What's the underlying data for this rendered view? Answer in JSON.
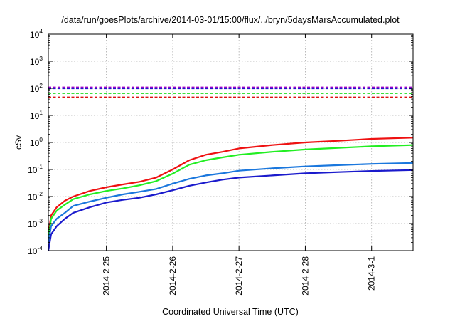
{
  "chart_data": {
    "type": "line",
    "title": "/data/run/goesPlots/archive/2014-03-01/15:00/flux/../bryn/5daysMarsAccumulated.plot",
    "xlabel": "Coordinated Universal Time (UTC)",
    "ylabel": "cSv",
    "yscale": "log",
    "ylim": [
      0.0001,
      10000
    ],
    "xlim": [
      "2014-02-24T03:00",
      "2014-03-01T15:00"
    ],
    "grid": true,
    "x_ticks": [
      "2014-2-25",
      "2014-2-26",
      "2014-2-27",
      "2014-2-28",
      "2014-3-1"
    ],
    "y_ticks": [
      {
        "base": "10",
        "exp": "-4",
        "value": 0.0001
      },
      {
        "base": "10",
        "exp": "-3",
        "value": 0.001
      },
      {
        "base": "10",
        "exp": "-2",
        "value": 0.01
      },
      {
        "base": "10",
        "exp": "-1",
        "value": 0.1
      },
      {
        "base": "10",
        "exp": "0",
        "value": 1
      },
      {
        "base": "10",
        "exp": "1",
        "value": 10
      },
      {
        "base": "10",
        "exp": "2",
        "value": 100
      },
      {
        "base": "10",
        "exp": "3",
        "value": 1000
      },
      {
        "base": "10",
        "exp": "4",
        "value": 10000
      }
    ],
    "thresholds": [
      {
        "color": "#9a00c8",
        "value": 110
      },
      {
        "color": "#1a1acc",
        "value": 98
      },
      {
        "color": "#22dd22",
        "value": 65
      },
      {
        "color": "#dd1111",
        "value": 47
      }
    ],
    "series": [
      {
        "color": "#ee1111",
        "points": [
          [
            "2014-02-24T03:00",
            0.0004
          ],
          [
            "2014-02-24T04:00",
            0.002
          ],
          [
            "2014-02-24T06:00",
            0.004
          ],
          [
            "2014-02-24T09:00",
            0.007
          ],
          [
            "2014-02-24T12:00",
            0.01
          ],
          [
            "2014-02-24T18:00",
            0.016
          ],
          [
            "2014-02-25T00:00",
            0.022
          ],
          [
            "2014-02-25T06:00",
            0.028
          ],
          [
            "2014-02-25T12:00",
            0.035
          ],
          [
            "2014-02-25T18:00",
            0.05
          ],
          [
            "2014-02-26T00:00",
            0.1
          ],
          [
            "2014-02-26T06:00",
            0.22
          ],
          [
            "2014-02-26T12:00",
            0.35
          ],
          [
            "2014-02-26T18:00",
            0.45
          ],
          [
            "2014-02-27T00:00",
            0.6
          ],
          [
            "2014-02-27T12:00",
            0.8
          ],
          [
            "2014-02-28T00:00",
            1.0
          ],
          [
            "2014-02-28T12:00",
            1.15
          ],
          [
            "2014-03-01T00:00",
            1.35
          ],
          [
            "2014-03-01T15:00",
            1.5
          ]
        ]
      },
      {
        "color": "#22ee22",
        "points": [
          [
            "2014-02-24T03:00",
            0.0003
          ],
          [
            "2014-02-24T04:00",
            0.0015
          ],
          [
            "2014-02-24T06:00",
            0.003
          ],
          [
            "2014-02-24T09:00",
            0.005
          ],
          [
            "2014-02-24T12:00",
            0.008
          ],
          [
            "2014-02-24T18:00",
            0.012
          ],
          [
            "2014-02-25T00:00",
            0.016
          ],
          [
            "2014-02-25T06:00",
            0.02
          ],
          [
            "2014-02-25T12:00",
            0.026
          ],
          [
            "2014-02-25T18:00",
            0.037
          ],
          [
            "2014-02-26T00:00",
            0.07
          ],
          [
            "2014-02-26T06:00",
            0.15
          ],
          [
            "2014-02-26T12:00",
            0.22
          ],
          [
            "2014-02-26T18:00",
            0.28
          ],
          [
            "2014-02-27T00:00",
            0.35
          ],
          [
            "2014-02-27T12:00",
            0.45
          ],
          [
            "2014-02-28T00:00",
            0.55
          ],
          [
            "2014-02-28T12:00",
            0.63
          ],
          [
            "2014-03-01T00:00",
            0.72
          ],
          [
            "2014-03-01T15:00",
            0.8
          ]
        ]
      },
      {
        "color": "#1a77dd",
        "points": [
          [
            "2014-02-24T03:00",
            0.0002
          ],
          [
            "2014-02-24T04:00",
            0.0008
          ],
          [
            "2014-02-24T06:00",
            0.0015
          ],
          [
            "2014-02-24T09:00",
            0.0025
          ],
          [
            "2014-02-24T12:00",
            0.0045
          ],
          [
            "2014-02-24T18:00",
            0.0065
          ],
          [
            "2014-02-25T00:00",
            0.009
          ],
          [
            "2014-02-25T06:00",
            0.012
          ],
          [
            "2014-02-25T12:00",
            0.015
          ],
          [
            "2014-02-25T18:00",
            0.019
          ],
          [
            "2014-02-26T00:00",
            0.03
          ],
          [
            "2014-02-26T06:00",
            0.045
          ],
          [
            "2014-02-26T12:00",
            0.06
          ],
          [
            "2014-02-26T18:00",
            0.072
          ],
          [
            "2014-02-27T00:00",
            0.09
          ],
          [
            "2014-02-27T12:00",
            0.11
          ],
          [
            "2014-02-28T00:00",
            0.13
          ],
          [
            "2014-02-28T12:00",
            0.145
          ],
          [
            "2014-03-01T00:00",
            0.16
          ],
          [
            "2014-03-01T15:00",
            0.175
          ]
        ]
      },
      {
        "color": "#1a1acc",
        "points": [
          [
            "2014-02-24T03:00",
            0.0001
          ],
          [
            "2014-02-24T04:00",
            0.0004
          ],
          [
            "2014-02-24T06:00",
            0.0008
          ],
          [
            "2014-02-24T09:00",
            0.0015
          ],
          [
            "2014-02-24T12:00",
            0.0025
          ],
          [
            "2014-02-24T18:00",
            0.004
          ],
          [
            "2014-02-25T00:00",
            0.006
          ],
          [
            "2014-02-25T06:00",
            0.0075
          ],
          [
            "2014-02-25T12:00",
            0.009
          ],
          [
            "2014-02-25T18:00",
            0.012
          ],
          [
            "2014-02-26T00:00",
            0.017
          ],
          [
            "2014-02-26T06:00",
            0.025
          ],
          [
            "2014-02-26T12:00",
            0.033
          ],
          [
            "2014-02-26T18:00",
            0.042
          ],
          [
            "2014-02-27T00:00",
            0.05
          ],
          [
            "2014-02-27T12:00",
            0.06
          ],
          [
            "2014-02-28T00:00",
            0.072
          ],
          [
            "2014-02-28T12:00",
            0.08
          ],
          [
            "2014-03-01T00:00",
            0.088
          ],
          [
            "2014-03-01T15:00",
            0.095
          ]
        ]
      }
    ]
  }
}
